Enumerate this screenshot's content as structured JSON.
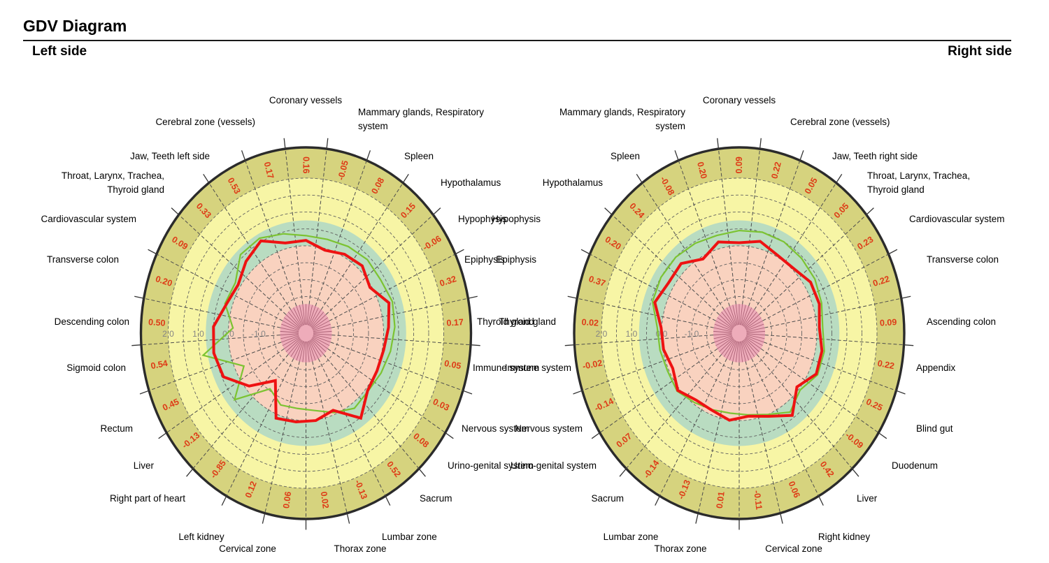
{
  "page": {
    "title": "GDV Diagram",
    "left_section_label": "Left side",
    "right_section_label": "Right side"
  },
  "colors": {
    "band_outer_ring": "#d6d37e",
    "band_high": "#f7f5a5",
    "band_normal": "#b9dcc1",
    "band_low": "#f9d2bf",
    "band_center": "#eeacba",
    "series_measured": "#ee1212",
    "series_norm": "#7cc332",
    "value_label": "#de3b17",
    "grid": "#606060",
    "spoke": "#4d4d4d",
    "rim": "#2b2b2b",
    "scale_label": "#858585",
    "sector_label": "#000000"
  },
  "chart_data": [
    {
      "type": "radar",
      "title": "Left side",
      "direction": "clockwise-from-top",
      "sector_angle_deg": 14.4,
      "radial_ticks": [
        "2.0",
        "1.0",
        "0.0",
        "-1.0"
      ],
      "radial_tick_values": [
        2,
        1,
        0,
        -1
      ],
      "radial_range": [
        -2.6,
        2.9
      ],
      "grid": "on",
      "legend_position": "none",
      "categories": [
        "Coronary vessels",
        "Mammary glands, Respiratory\nsystem",
        "Spleen",
        "Hypothalamus",
        "Hypophysis",
        "Epiphysis",
        "Thyroid gland",
        "Immune system",
        "Nervous system",
        "Urino-genital system",
        "Sacrum",
        "Lumbar zone",
        "Thorax zone",
        "Cervical zone",
        "Left kidney",
        "Right part of heart",
        "Liver",
        "Rectum",
        "Sigmoid colon",
        "Descending colon",
        "Transverse colon",
        "Cardiovascular system",
        "Throat, Larynx, Trachea,\nThyroid gland",
        "Jaw, Teeth left side",
        "Cerebral zone (vessels)"
      ],
      "value_labels": [
        "0.16",
        "-0.05",
        "0.08",
        "0.15",
        "-0.06",
        "0.32",
        "0.17",
        "0.05",
        "0.03",
        "0.08",
        "0.52",
        "-0.13",
        "0.02",
        "0.06",
        "0.12",
        "-0.85",
        "-0.13",
        "0.45",
        "0.54",
        "0.50",
        "0.20",
        "0.09",
        "0.33",
        "0.53",
        "0.17"
      ],
      "series": [
        {
          "name": "measured",
          "color_key": "series_measured",
          "values": [
            0.16,
            -0.05,
            0.08,
            0.15,
            -0.06,
            0.32,
            0.17,
            0.05,
            0.03,
            0.08,
            0.52,
            -0.13,
            0.02,
            0.06,
            0.12,
            -0.85,
            -0.13,
            0.45,
            0.54,
            0.5,
            0.2,
            0.09,
            0.33,
            0.53,
            0.17
          ]
        },
        {
          "name": "norm_estimated",
          "color_key": "series_norm",
          "values": [
            0.3,
            0.28,
            0.34,
            0.4,
            0.36,
            0.44,
            0.38,
            0.28,
            0.18,
            0.1,
            0.16,
            -0.06,
            -0.28,
            -0.34,
            -0.3,
            -0.55,
            0.5,
            -0.3,
            0.9,
            -0.15,
            0.25,
            0.2,
            0.6,
            0.62,
            0.45
          ]
        }
      ],
      "bands": [
        {
          "from": 2.0,
          "to": 2.9,
          "color_key": "band_outer_ring"
        },
        {
          "from": 0.75,
          "to": 2.0,
          "color_key": "band_high"
        },
        {
          "from": 0.0,
          "to": 0.75,
          "color_key": "band_normal"
        },
        {
          "from": -1.72,
          "to": 0.0,
          "color_key": "band_low"
        },
        {
          "from": -2.6,
          "to": -1.72,
          "color_key": "band_center"
        }
      ]
    },
    {
      "type": "radar",
      "title": "Right side",
      "direction": "clockwise-from-top",
      "sector_angle_deg": 14.4,
      "radial_ticks": [
        "2.0",
        "1.0",
        "0.0",
        "-1.0"
      ],
      "radial_tick_values": [
        2,
        1,
        0,
        -1
      ],
      "radial_range": [
        -2.6,
        2.9
      ],
      "grid": "on",
      "legend_position": "none",
      "categories": [
        "Coronary vessels",
        "Cerebral zone (vessels)",
        "Jaw, Teeth right side",
        "Throat, Larynx, Trachea,\nThyroid gland",
        "Cardiovascular system",
        "Transverse colon",
        "Ascending colon",
        "Appendix",
        "Blind gut",
        "Duodenum",
        "Liver",
        "Right kidney",
        "Cervical zone",
        "Thorax zone",
        "Lumbar zone",
        "Sacrum",
        "Urino-genital system",
        "Nervous system",
        "Immune system",
        "Thyroid gland",
        "Epiphysis",
        "Hypophysis",
        "Hypothalamus",
        "Spleen",
        "Mammary glands, Respiratory\nsystem"
      ],
      "value_labels": [
        "0.09",
        "0.22",
        "0.05",
        "0.05",
        "0.23",
        "0.22",
        "0.09",
        "0.22",
        "0.25",
        "-0.09",
        "0.42",
        "0.06",
        "-0.11",
        "0.01",
        "-0.13",
        "-0.14",
        "0.07",
        "-0.14",
        "-0.02",
        "0.02",
        "0.37",
        "0.20",
        "0.24",
        "-0.08",
        "0.20"
      ],
      "series": [
        {
          "name": "measured",
          "color_key": "series_measured",
          "values": [
            0.09,
            0.22,
            0.05,
            0.05,
            0.23,
            0.22,
            0.09,
            0.22,
            0.25,
            -0.09,
            0.42,
            0.06,
            -0.11,
            0.01,
            -0.13,
            -0.14,
            0.07,
            -0.14,
            -0.02,
            0.02,
            0.37,
            0.2,
            0.24,
            -0.08,
            0.2
          ]
        },
        {
          "name": "norm_estimated",
          "color_key": "series_norm",
          "values": [
            0.45,
            0.5,
            0.5,
            0.45,
            0.4,
            0.3,
            0.2,
            0.3,
            0.3,
            0.05,
            0.3,
            0.0,
            -0.15,
            -0.2,
            -0.15,
            -0.05,
            0.1,
            0.05,
            0.1,
            0.15,
            0.45,
            0.5,
            0.5,
            0.45,
            0.4
          ]
        }
      ],
      "bands": [
        {
          "from": 2.0,
          "to": 2.9,
          "color_key": "band_outer_ring"
        },
        {
          "from": 0.75,
          "to": 2.0,
          "color_key": "band_high"
        },
        {
          "from": 0.0,
          "to": 0.75,
          "color_key": "band_normal"
        },
        {
          "from": -1.72,
          "to": 0.0,
          "color_key": "band_low"
        },
        {
          "from": -2.6,
          "to": -1.72,
          "color_key": "band_center"
        }
      ]
    }
  ]
}
